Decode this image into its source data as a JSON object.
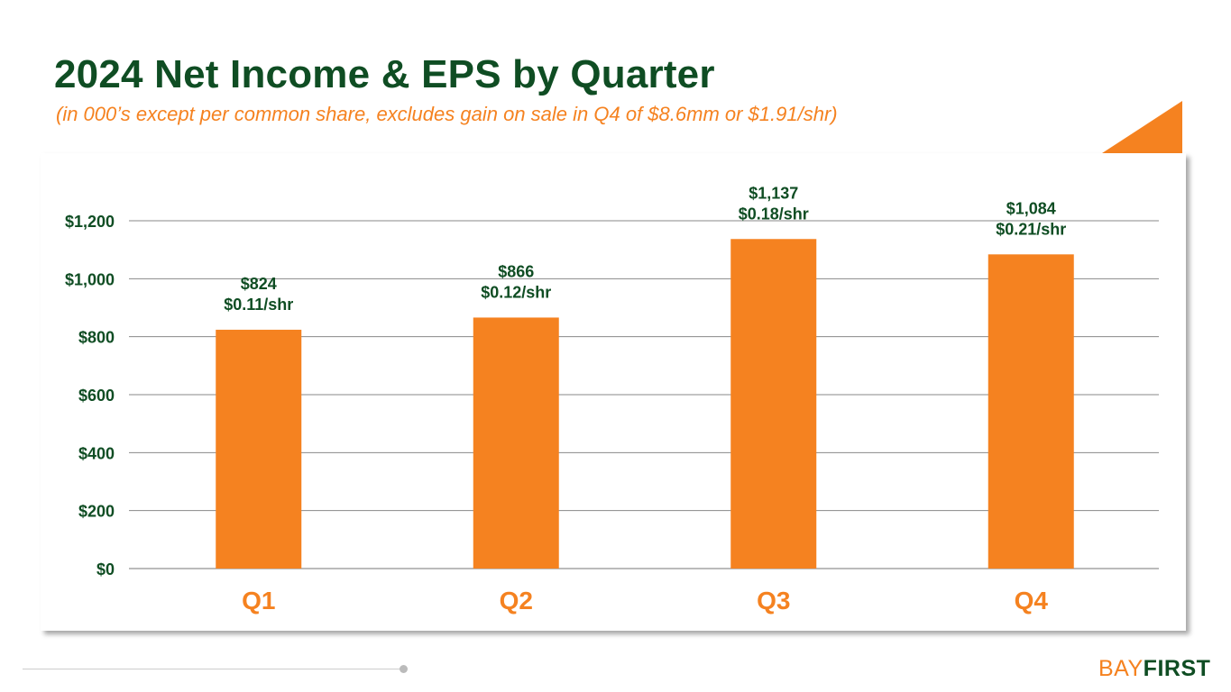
{
  "header": {
    "title": "2024 Net Income & EPS by Quarter",
    "subtitle": "(in 000’s except per common share, excludes gain on sale in Q4 of $8.6mm or $1.91/shr)"
  },
  "logo": {
    "bay": "BAY",
    "first": "FIRST"
  },
  "colors": {
    "bar": "#f58220",
    "label": "#0f4d23",
    "category": "#f58220",
    "title": "#0f4d23"
  },
  "chart_data": {
    "type": "bar",
    "categories": [
      "Q1",
      "Q2",
      "Q3",
      "Q4"
    ],
    "values": [
      824,
      866,
      1137,
      1084
    ],
    "data_labels": [
      [
        "$824",
        "$0.11/shr"
      ],
      [
        "$866",
        "$0.12/shr"
      ],
      [
        "$1,137",
        "$0.18/shr"
      ],
      [
        "$1,084",
        "$0.21/shr"
      ]
    ],
    "ylim": [
      0,
      1200
    ],
    "yticks": [
      0,
      200,
      400,
      600,
      800,
      1000,
      1200
    ],
    "ytick_labels": [
      "$0",
      "$200",
      "$400",
      "$600",
      "$800",
      "$1,000",
      "$1,200"
    ],
    "grid": true,
    "legend": "none"
  }
}
